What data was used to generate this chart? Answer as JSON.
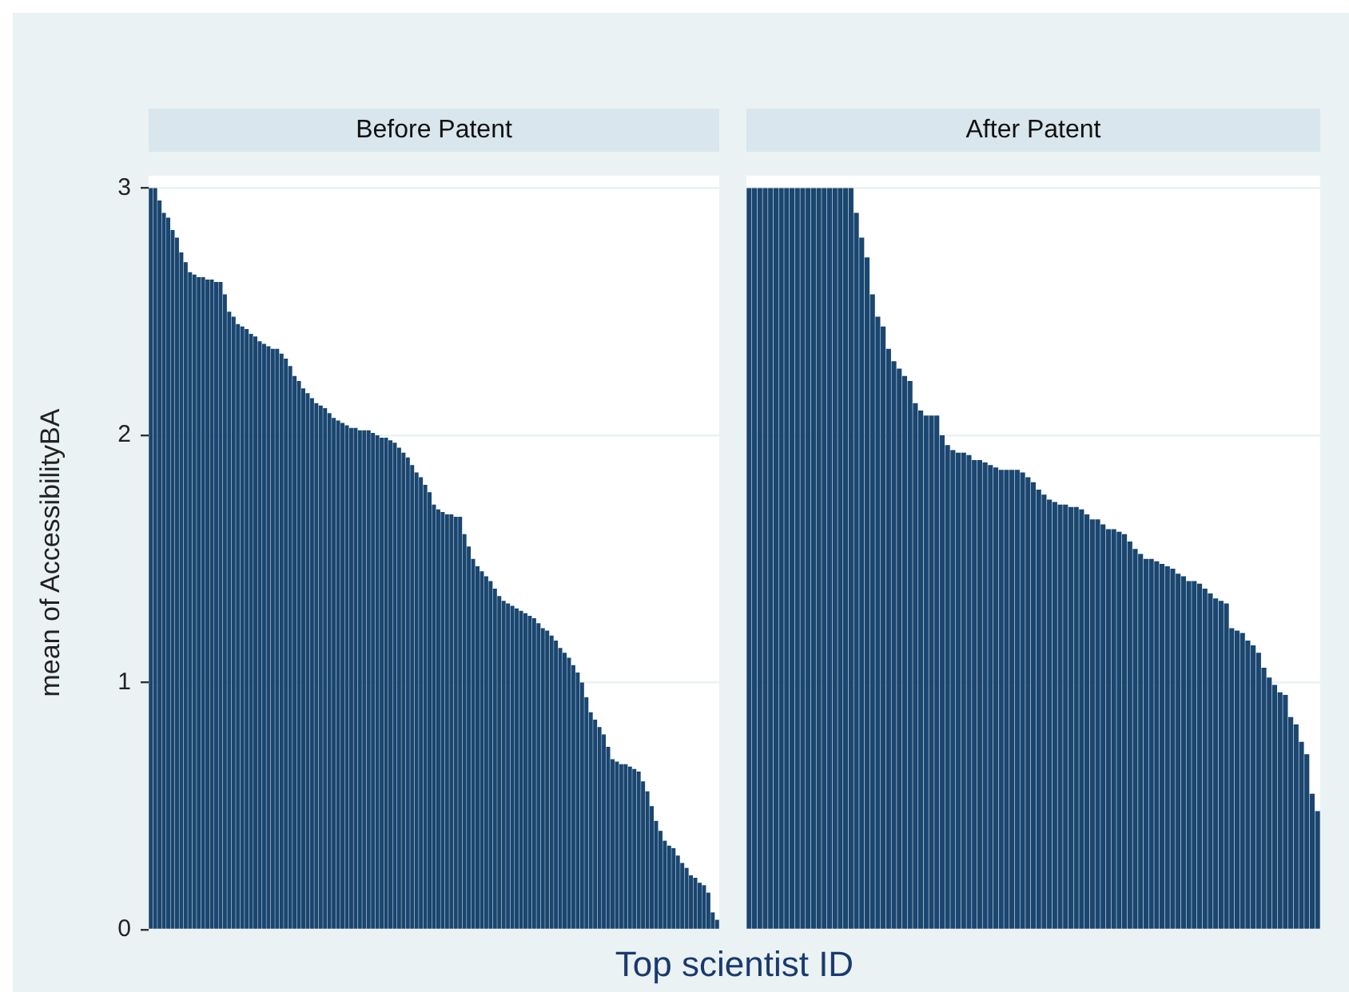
{
  "chart_data": [
    {
      "type": "bar",
      "title": "Before Patent",
      "ylabel": "mean of AccessibilityBA",
      "xlabel": "Top scientist ID",
      "color": "#1a4670",
      "ylim": [
        0,
        3.05
      ],
      "yticks": [
        0,
        1,
        2,
        3
      ],
      "grid": "y",
      "tick_labels": "y",
      "categories": [
        null,
        null,
        null,
        null,
        null,
        null,
        null,
        null,
        null,
        null,
        null,
        null,
        null,
        null,
        null,
        null,
        null,
        null,
        null,
        null,
        null,
        null,
        null,
        null,
        null,
        null,
        null,
        null,
        null,
        null,
        null,
        null,
        null,
        null,
        null,
        null,
        null,
        null,
        null,
        null,
        null,
        null,
        null,
        null,
        null,
        null,
        null,
        null,
        null,
        null,
        null,
        null,
        null,
        null,
        null,
        null,
        null,
        null,
        null,
        null,
        null,
        null,
        null,
        null,
        null,
        null,
        null,
        null,
        null,
        null,
        null,
        null,
        null,
        null,
        null,
        null,
        null,
        null,
        null,
        null,
        null,
        null,
        null,
        null,
        null,
        null,
        null,
        null,
        null,
        null,
        null,
        null,
        null,
        null,
        null,
        null,
        null,
        null,
        null,
        null,
        null,
        null,
        null,
        null,
        null,
        null,
        null,
        null,
        null,
        null,
        null,
        null,
        null,
        null,
        null,
        null,
        null,
        null,
        null,
        null,
        null,
        null,
        null,
        null,
        null,
        null,
        null,
        null,
        null,
        null,
        null
      ],
      "values": [
        3.0,
        3.0,
        2.95,
        2.9,
        2.88,
        2.83,
        2.8,
        2.74,
        2.7,
        2.66,
        2.65,
        2.64,
        2.64,
        2.63,
        2.63,
        2.62,
        2.62,
        2.57,
        2.5,
        2.48,
        2.45,
        2.44,
        2.43,
        2.41,
        2.4,
        2.38,
        2.37,
        2.36,
        2.35,
        2.35,
        2.33,
        2.31,
        2.28,
        2.24,
        2.22,
        2.19,
        2.17,
        2.15,
        2.13,
        2.12,
        2.11,
        2.09,
        2.07,
        2.06,
        2.05,
        2.04,
        2.03,
        2.03,
        2.02,
        2.02,
        2.02,
        2.01,
        2.0,
        1.99,
        1.99,
        1.98,
        1.97,
        1.95,
        1.93,
        1.91,
        1.88,
        1.85,
        1.83,
        1.8,
        1.77,
        1.72,
        1.7,
        1.69,
        1.68,
        1.68,
        1.67,
        1.67,
        1.6,
        1.55,
        1.5,
        1.47,
        1.45,
        1.43,
        1.41,
        1.38,
        1.35,
        1.33,
        1.32,
        1.31,
        1.3,
        1.29,
        1.28,
        1.27,
        1.26,
        1.24,
        1.22,
        1.21,
        1.19,
        1.17,
        1.14,
        1.12,
        1.1,
        1.07,
        1.04,
        1.0,
        0.94,
        0.88,
        0.85,
        0.82,
        0.79,
        0.74,
        0.69,
        0.68,
        0.67,
        0.67,
        0.66,
        0.65,
        0.64,
        0.6,
        0.56,
        0.5,
        0.44,
        0.4,
        0.36,
        0.34,
        0.33,
        0.3,
        0.27,
        0.25,
        0.22,
        0.21,
        0.19,
        0.18,
        0.15,
        0.07,
        0.04
      ]
    },
    {
      "type": "bar",
      "title": "After Patent",
      "color": "#1a4670",
      "ylim": [
        0,
        3.05
      ],
      "yticks": [
        0,
        1,
        2,
        3
      ],
      "grid": "y",
      "tick_labels": false,
      "categories": [
        null,
        null,
        null,
        null,
        null,
        null,
        null,
        null,
        null,
        null,
        null,
        null,
        null,
        null,
        null,
        null,
        null,
        null,
        null,
        null,
        null,
        null,
        null,
        null,
        null,
        null,
        null,
        null,
        null,
        null,
        null,
        null,
        null,
        null,
        null,
        null,
        null,
        null,
        null,
        null,
        null,
        null,
        null,
        null,
        null,
        null,
        null,
        null,
        null,
        null,
        null,
        null,
        null,
        null,
        null,
        null,
        null,
        null,
        null,
        null,
        null,
        null,
        null,
        null,
        null,
        null,
        null,
        null,
        null,
        null,
        null,
        null,
        null,
        null,
        null,
        null,
        null,
        null,
        null,
        null,
        null,
        null,
        null,
        null,
        null,
        null,
        null,
        null,
        null,
        null,
        null,
        null,
        null,
        null,
        null,
        null,
        null,
        null,
        null,
        null,
        null,
        null,
        null,
        null,
        null,
        null,
        null
      ],
      "values": [
        3.0,
        3.0,
        3.0,
        3.0,
        3.0,
        3.0,
        3.0,
        3.0,
        3.0,
        3.0,
        3.0,
        3.0,
        3.0,
        3.0,
        3.0,
        3.0,
        3.0,
        3.0,
        3.0,
        3.0,
        2.9,
        2.8,
        2.72,
        2.57,
        2.48,
        2.44,
        2.35,
        2.3,
        2.27,
        2.24,
        2.22,
        2.13,
        2.1,
        2.08,
        2.08,
        2.08,
        2.0,
        1.96,
        1.94,
        1.93,
        1.93,
        1.92,
        1.9,
        1.9,
        1.89,
        1.88,
        1.87,
        1.86,
        1.86,
        1.86,
        1.86,
        1.85,
        1.83,
        1.81,
        1.78,
        1.76,
        1.74,
        1.73,
        1.72,
        1.72,
        1.71,
        1.71,
        1.7,
        1.68,
        1.66,
        1.66,
        1.64,
        1.62,
        1.62,
        1.61,
        1.6,
        1.57,
        1.54,
        1.52,
        1.5,
        1.5,
        1.49,
        1.48,
        1.47,
        1.46,
        1.44,
        1.43,
        1.41,
        1.41,
        1.4,
        1.38,
        1.36,
        1.34,
        1.33,
        1.32,
        1.22,
        1.21,
        1.2,
        1.17,
        1.15,
        1.12,
        1.06,
        1.02,
        0.99,
        0.96,
        0.95,
        0.86,
        0.83,
        0.76,
        0.71,
        0.55,
        0.48
      ]
    }
  ]
}
